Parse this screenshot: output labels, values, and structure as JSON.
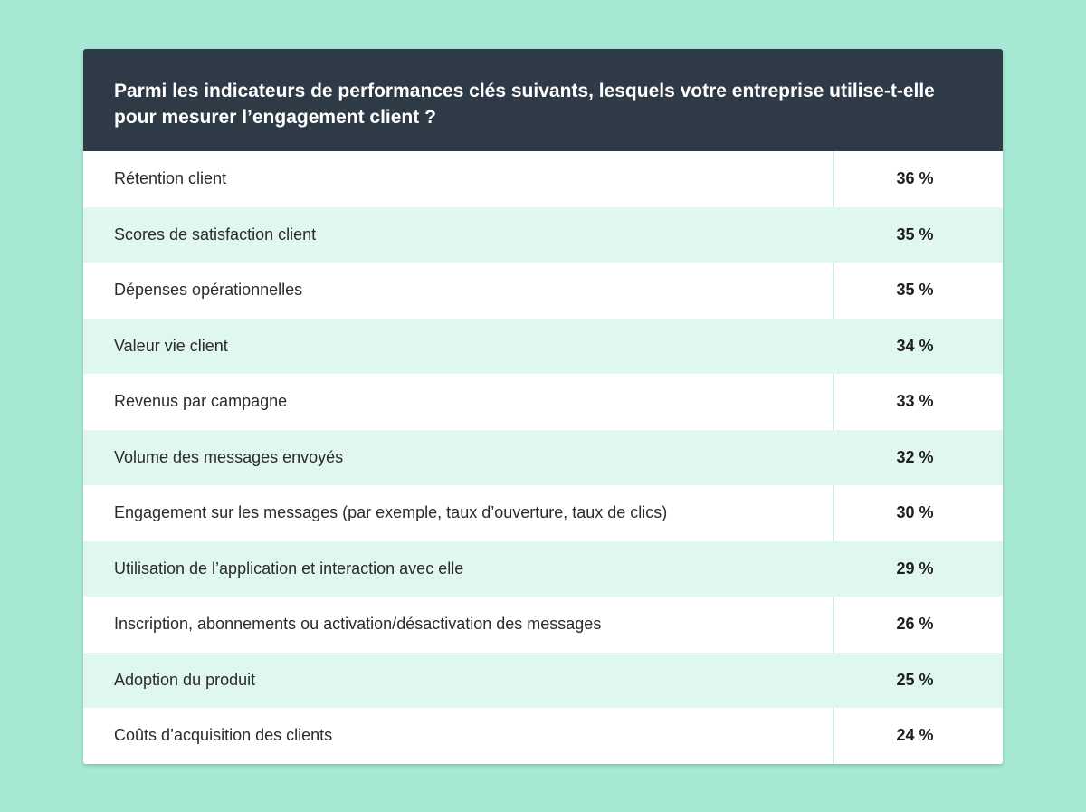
{
  "chart_data": {
    "type": "table",
    "title": "Parmi les indicateurs de performances clés suivants, lesquels votre entreprise utilise-t-elle pour mesurer l’engagement client ?",
    "categories": [
      "Rétention client",
      "Scores de satisfaction client",
      "Dépenses opérationnelles",
      "Valeur vie client",
      "Revenus par campagne",
      "Volume des messages envoyés",
      "Engagement sur les messages (par exemple, taux d’ouverture, taux de clics)",
      "Utilisation de l’application et interaction avec elle",
      "Inscription, abonnements ou activation/désactivation des messages",
      "Adoption du produit",
      "Coûts d’acquisition des clients"
    ],
    "values": [
      36,
      35,
      35,
      34,
      33,
      32,
      30,
      29,
      26,
      25,
      24
    ],
    "value_labels": [
      "36 %",
      "35 %",
      "35 %",
      "34 %",
      "33 %",
      "32 %",
      "30 %",
      "29 %",
      "26 %",
      "25 %",
      "24 %"
    ],
    "unit": "%"
  },
  "colors": {
    "background": "#a6e8d4",
    "header": "#2e3b47",
    "row_alt": "#e0f7ef",
    "row": "#ffffff"
  }
}
